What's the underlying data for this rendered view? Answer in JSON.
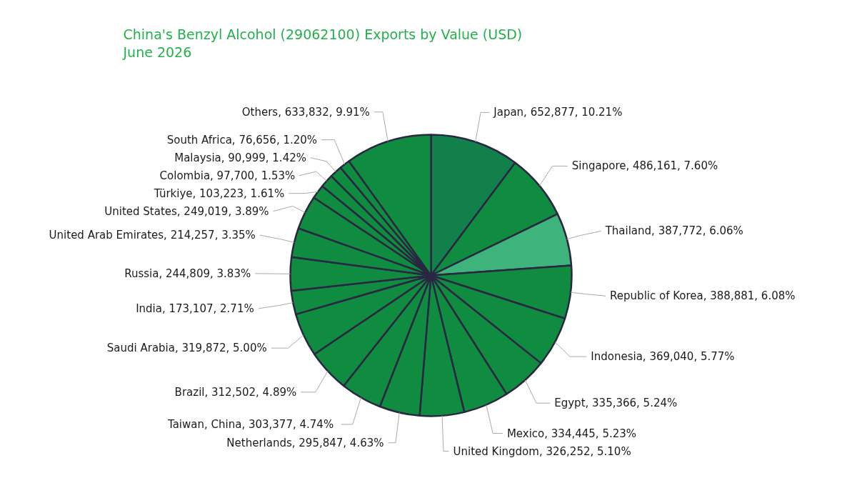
{
  "chart_data": {
    "type": "pie",
    "title": "China's Benzyl Alcohol (29062100) Exports by Value (USD)",
    "subtitle": "June 2026",
    "categories": [
      "Japan",
      "Singapore",
      "Thailand",
      "Republic of Korea",
      "Indonesia",
      "Egypt",
      "Mexico",
      "United Kingdom",
      "Netherlands",
      "Taiwan,  China",
      "Brazil",
      "Saudi Arabia",
      "India",
      "Russia",
      "United Arab Emirates",
      "United States",
      "Türkiye",
      "Colombia",
      "Malaysia",
      "South Africa",
      "Others"
    ],
    "values": [
      10.21,
      7.6,
      6.06,
      6.08,
      5.77,
      5.24,
      5.23,
      5.1,
      4.63,
      4.74,
      4.89,
      5.0,
      2.71,
      3.83,
      3.35,
      3.89,
      1.61,
      1.53,
      1.42,
      1.2,
      9.91
    ],
    "value_labels": [
      "652,877, 10.21%",
      "486,161, 7.60%",
      "387,772, 6.06%",
      "388,881, 6.08%",
      "369,040, 5.77%",
      "335,366, 5.24%",
      "334,445, 5.23%",
      "326,252, 5.10%",
      "295,847, 4.63%",
      "303,377, 4.74%",
      "312,502, 4.89%",
      "319,872, 5.00%",
      "173,107, 2.71%",
      "244,809, 3.83%",
      "214,257, 3.35%",
      "249,019, 3.89%",
      "103,223, 1.61%",
      "97,700, 1.53%",
      "90,999, 1.42%",
      "76,656, 1.20%",
      "633,832, 9.91%"
    ],
    "colors": [
      "#12804a",
      "#0f8c3f",
      "#3fb37c",
      "#0f8c3f",
      "#0f8c3f",
      "#0f8c3f",
      "#0f8c3f",
      "#0f8c3f",
      "#0f8c3f",
      "#0f8c3f",
      "#0f8c3f",
      "#0f8c3f",
      "#0f8c3f",
      "#0f8c3f",
      "#0f8c3f",
      "#0f8c3f",
      "#0f8c3f",
      "#0f8c3f",
      "#0f8c3f",
      "#0f8c3f",
      "#0f8c3f"
    ]
  }
}
